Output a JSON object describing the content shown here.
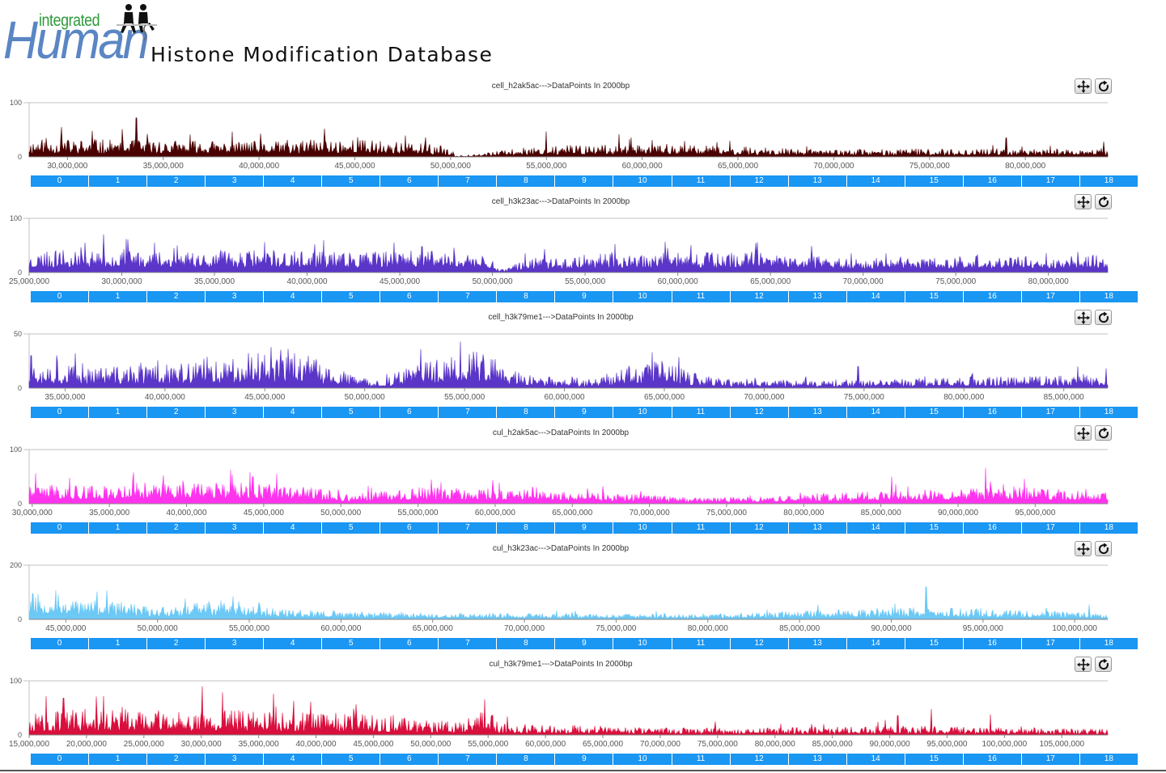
{
  "header": {
    "logo_text_top": "integrated",
    "logo_text_main": "Human",
    "title": "Histone Modification Database"
  },
  "segment_labels": [
    "0",
    "1",
    "2",
    "3",
    "4",
    "5",
    "6",
    "7",
    "8",
    "9",
    "10",
    "11",
    "12",
    "13",
    "14",
    "15",
    "16",
    "17",
    "18"
  ],
  "icons": {
    "pan": "move-arrows-icon",
    "reset": "refresh-icon"
  },
  "chart_data": [
    {
      "type": "area",
      "title": "cell_h2ak5ac--->DataPoints In 2000bp",
      "color": "#4a0000",
      "ylim": [
        0,
        100
      ],
      "y_ticks": [
        "100",
        "0"
      ],
      "xlim": [
        28000000,
        84300000
      ],
      "x_ticks": [
        30000000,
        35000000,
        40000000,
        45000000,
        50000000,
        55000000,
        60000000,
        65000000,
        70000000,
        75000000,
        80000000
      ],
      "x_tick_labels": [
        "30,000,000",
        "35,000,000",
        "40,000,000",
        "45,000,000",
        "50,000,000",
        "55,000,000",
        "60,000,000",
        "65,000,000",
        "70,000,000",
        "75,000,000",
        "80,000,000"
      ],
      "profile_x": [
        28000000,
        34000000,
        41000000,
        44500000,
        47500000,
        49500000,
        50300000,
        54500000,
        57000000,
        63000000,
        69000000,
        75000000,
        84300000
      ],
      "profile_y": [
        19,
        18,
        16,
        20,
        16,
        12,
        1,
        11,
        13,
        12,
        8,
        8,
        9
      ],
      "peaks": [
        [
          29700000,
          55
        ],
        [
          31300000,
          48
        ],
        [
          33600000,
          72
        ],
        [
          43400000,
          52
        ],
        [
          55000000,
          47
        ],
        [
          58800000,
          42
        ],
        [
          79000000,
          35
        ],
        [
          84100000,
          28
        ]
      ],
      "noise": 0.75,
      "seed": 11
    },
    {
      "type": "area",
      "title": "cell_h3k23ac--->DataPoints In 2000bp",
      "color": "#5a35c8",
      "ylim": [
        0,
        100
      ],
      "y_ticks": [
        "100",
        "0"
      ],
      "xlim": [
        25000000,
        83200000
      ],
      "x_ticks": [
        25000000,
        30000000,
        35000000,
        40000000,
        45000000,
        50000000,
        55000000,
        60000000,
        65000000,
        70000000,
        75000000,
        80000000
      ],
      "x_tick_labels": [
        "25,000,000",
        "30,000,000",
        "35,000,000",
        "40,000,000",
        "45,000,000",
        "50,000,000",
        "55,000,000",
        "60,000,000",
        "65,000,000",
        "70,000,000",
        "75,000,000",
        "80,000,000"
      ],
      "profile_x": [
        25000000,
        29000000,
        35000000,
        42000000,
        47500000,
        49700000,
        50400000,
        52000000,
        56000000,
        64000000,
        68000000,
        76000000,
        83200000
      ],
      "profile_y": [
        26,
        30,
        28,
        26,
        28,
        24,
        4,
        18,
        24,
        26,
        20,
        20,
        22
      ],
      "peaks": [
        [
          28000000,
          55
        ],
        [
          33000000,
          50
        ],
        [
          37700000,
          56
        ],
        [
          46200000,
          48
        ],
        [
          64300000,
          56
        ],
        [
          81600000,
          38
        ]
      ],
      "noise": 0.6,
      "seed": 23
    },
    {
      "type": "area",
      "title": "cell_h3k79me1--->DataPoints In 2000bp",
      "color": "#5a35c8",
      "ylim": [
        0,
        50
      ],
      "y_ticks": [
        "50",
        "0"
      ],
      "xlim": [
        33200000,
        87200000
      ],
      "x_ticks": [
        35000000,
        40000000,
        45000000,
        50000000,
        55000000,
        60000000,
        65000000,
        70000000,
        75000000,
        80000000,
        85000000
      ],
      "x_tick_labels": [
        "35,000,000",
        "40,000,000",
        "45,000,000",
        "50,000,000",
        "55,000,000",
        "60,000,000",
        "65,000,000",
        "70,000,000",
        "75,000,000",
        "80,000,000",
        "85,000,000"
      ],
      "profile_x": [
        33200000,
        36000000,
        38000000,
        42000000,
        44000000,
        46500000,
        48500000,
        50500000,
        53000000,
        55500000,
        58000000,
        61000000,
        64500000,
        67000000,
        70000000,
        75000000,
        80000000,
        87200000
      ],
      "profile_y": [
        14,
        10,
        10,
        12,
        16,
        18,
        9,
        3,
        12,
        18,
        6,
        4,
        14,
        5,
        4,
        4,
        5,
        6
      ],
      "peaks": [
        [
          33300000,
          30
        ],
        [
          45300000,
          38
        ],
        [
          52800000,
          36
        ],
        [
          54800000,
          43
        ],
        [
          64400000,
          33
        ],
        [
          74700000,
          20
        ],
        [
          85700000,
          20
        ]
      ],
      "noise": 0.9,
      "seed": 37
    },
    {
      "type": "area",
      "title": "cul_h2ak5ac--->DataPoints In 2000bp",
      "color": "#ff33ee",
      "ylim": [
        0,
        100
      ],
      "y_ticks": [
        "100",
        "0"
      ],
      "xlim": [
        29800000,
        99700000
      ],
      "x_ticks": [
        30000000,
        35000000,
        40000000,
        45000000,
        50000000,
        55000000,
        60000000,
        65000000,
        70000000,
        75000000,
        80000000,
        85000000,
        90000000,
        95000000
      ],
      "x_tick_labels": [
        "30,000,000",
        "35,000,000",
        "40,000,000",
        "45,000,000",
        "50,000,000",
        "55,000,000",
        "60,000,000",
        "65,000,000",
        "70,000,000",
        "75,000,000",
        "80,000,000",
        "85,000,000",
        "90,000,000",
        "95,000,000"
      ],
      "profile_x": [
        29800000,
        34000000,
        38000000,
        44000000,
        48000000,
        50500000,
        55000000,
        62000000,
        68000000,
        73000000,
        78000000,
        84000000,
        90000000,
        95000000,
        99700000
      ],
      "profile_y": [
        26,
        24,
        30,
        28,
        22,
        12,
        22,
        20,
        14,
        8,
        10,
        16,
        20,
        22,
        14
      ],
      "peaks": [
        [
          36500000,
          44
        ],
        [
          44300000,
          50
        ],
        [
          85700000,
          50
        ],
        [
          91800000,
          66
        ],
        [
          94300000,
          46
        ]
      ],
      "noise": 0.55,
      "seed": 41
    },
    {
      "type": "area",
      "title": "cul_h3k23ac--->DataPoints In 2000bp",
      "color": "#6cc8f5",
      "ylim": [
        0,
        200
      ],
      "y_ticks": [
        "200",
        "0"
      ],
      "xlim": [
        43000000,
        101800000
      ],
      "x_ticks": [
        45000000,
        50000000,
        55000000,
        60000000,
        65000000,
        70000000,
        75000000,
        80000000,
        85000000,
        90000000,
        95000000,
        100000000
      ],
      "x_tick_labels": [
        "45,000,000",
        "50,000,000",
        "55,000,000",
        "60,000,000",
        "65,000,000",
        "70,000,000",
        "75,000,000",
        "80,000,000",
        "85,000,000",
        "90,000,000",
        "95,000,000",
        "100,000,000"
      ],
      "profile_x": [
        43000000,
        46000000,
        50000000,
        54000000,
        57000000,
        62000000,
        70000000,
        80000000,
        86000000,
        92000000,
        96000000,
        101800000
      ],
      "profile_y": [
        70,
        48,
        30,
        48,
        24,
        18,
        14,
        12,
        22,
        30,
        22,
        16
      ],
      "peaks": [
        [
          43200000,
          95
        ],
        [
          54100000,
          85
        ],
        [
          91900000,
          120
        ],
        [
          100800000,
          55
        ]
      ],
      "noise": 0.65,
      "seed": 53
    },
    {
      "type": "area",
      "title": "cul_h3k79me1--->DataPoints In 2000bp",
      "color": "#d80f3c",
      "ylim": [
        0,
        100
      ],
      "y_ticks": [
        "100",
        "0"
      ],
      "xlim": [
        15000000,
        109000000
      ],
      "x_ticks": [
        15000000,
        20000000,
        25000000,
        30000000,
        35000000,
        40000000,
        45000000,
        50000000,
        55000000,
        60000000,
        65000000,
        70000000,
        75000000,
        80000000,
        85000000,
        90000000,
        95000000,
        100000000,
        105000000
      ],
      "x_tick_labels": [
        "15,000,000",
        "20,000,000",
        "25,000,000",
        "30,000,000",
        "35,000,000",
        "40,000,000",
        "45,000,000",
        "50,000,000",
        "55,000,000",
        "60,000,000",
        "65,000,000",
        "70,000,000",
        "75,000,000",
        "80,000,000",
        "85,000,000",
        "90,000,000",
        "95,000,000",
        "100,000,000",
        "105,000,000"
      ],
      "profile_x": [
        15000000,
        20000000,
        25000000,
        32000000,
        40000000,
        46000000,
        52000000,
        55000000,
        56000000,
        62000000,
        70000000,
        80000000,
        90000000,
        100000000,
        109000000
      ],
      "profile_y": [
        18,
        22,
        20,
        22,
        18,
        16,
        12,
        22,
        10,
        8,
        6,
        6,
        8,
        6,
        5
      ],
      "peaks": [
        [
          16500000,
          72
        ],
        [
          18000000,
          68
        ],
        [
          21500000,
          72
        ],
        [
          30100000,
          90
        ],
        [
          36300000,
          76
        ],
        [
          54700000,
          66
        ],
        [
          74800000,
          25
        ],
        [
          90700000,
          36
        ],
        [
          93600000,
          48
        ],
        [
          98800000,
          38
        ]
      ],
      "noise": 1.0,
      "seed": 67
    }
  ]
}
